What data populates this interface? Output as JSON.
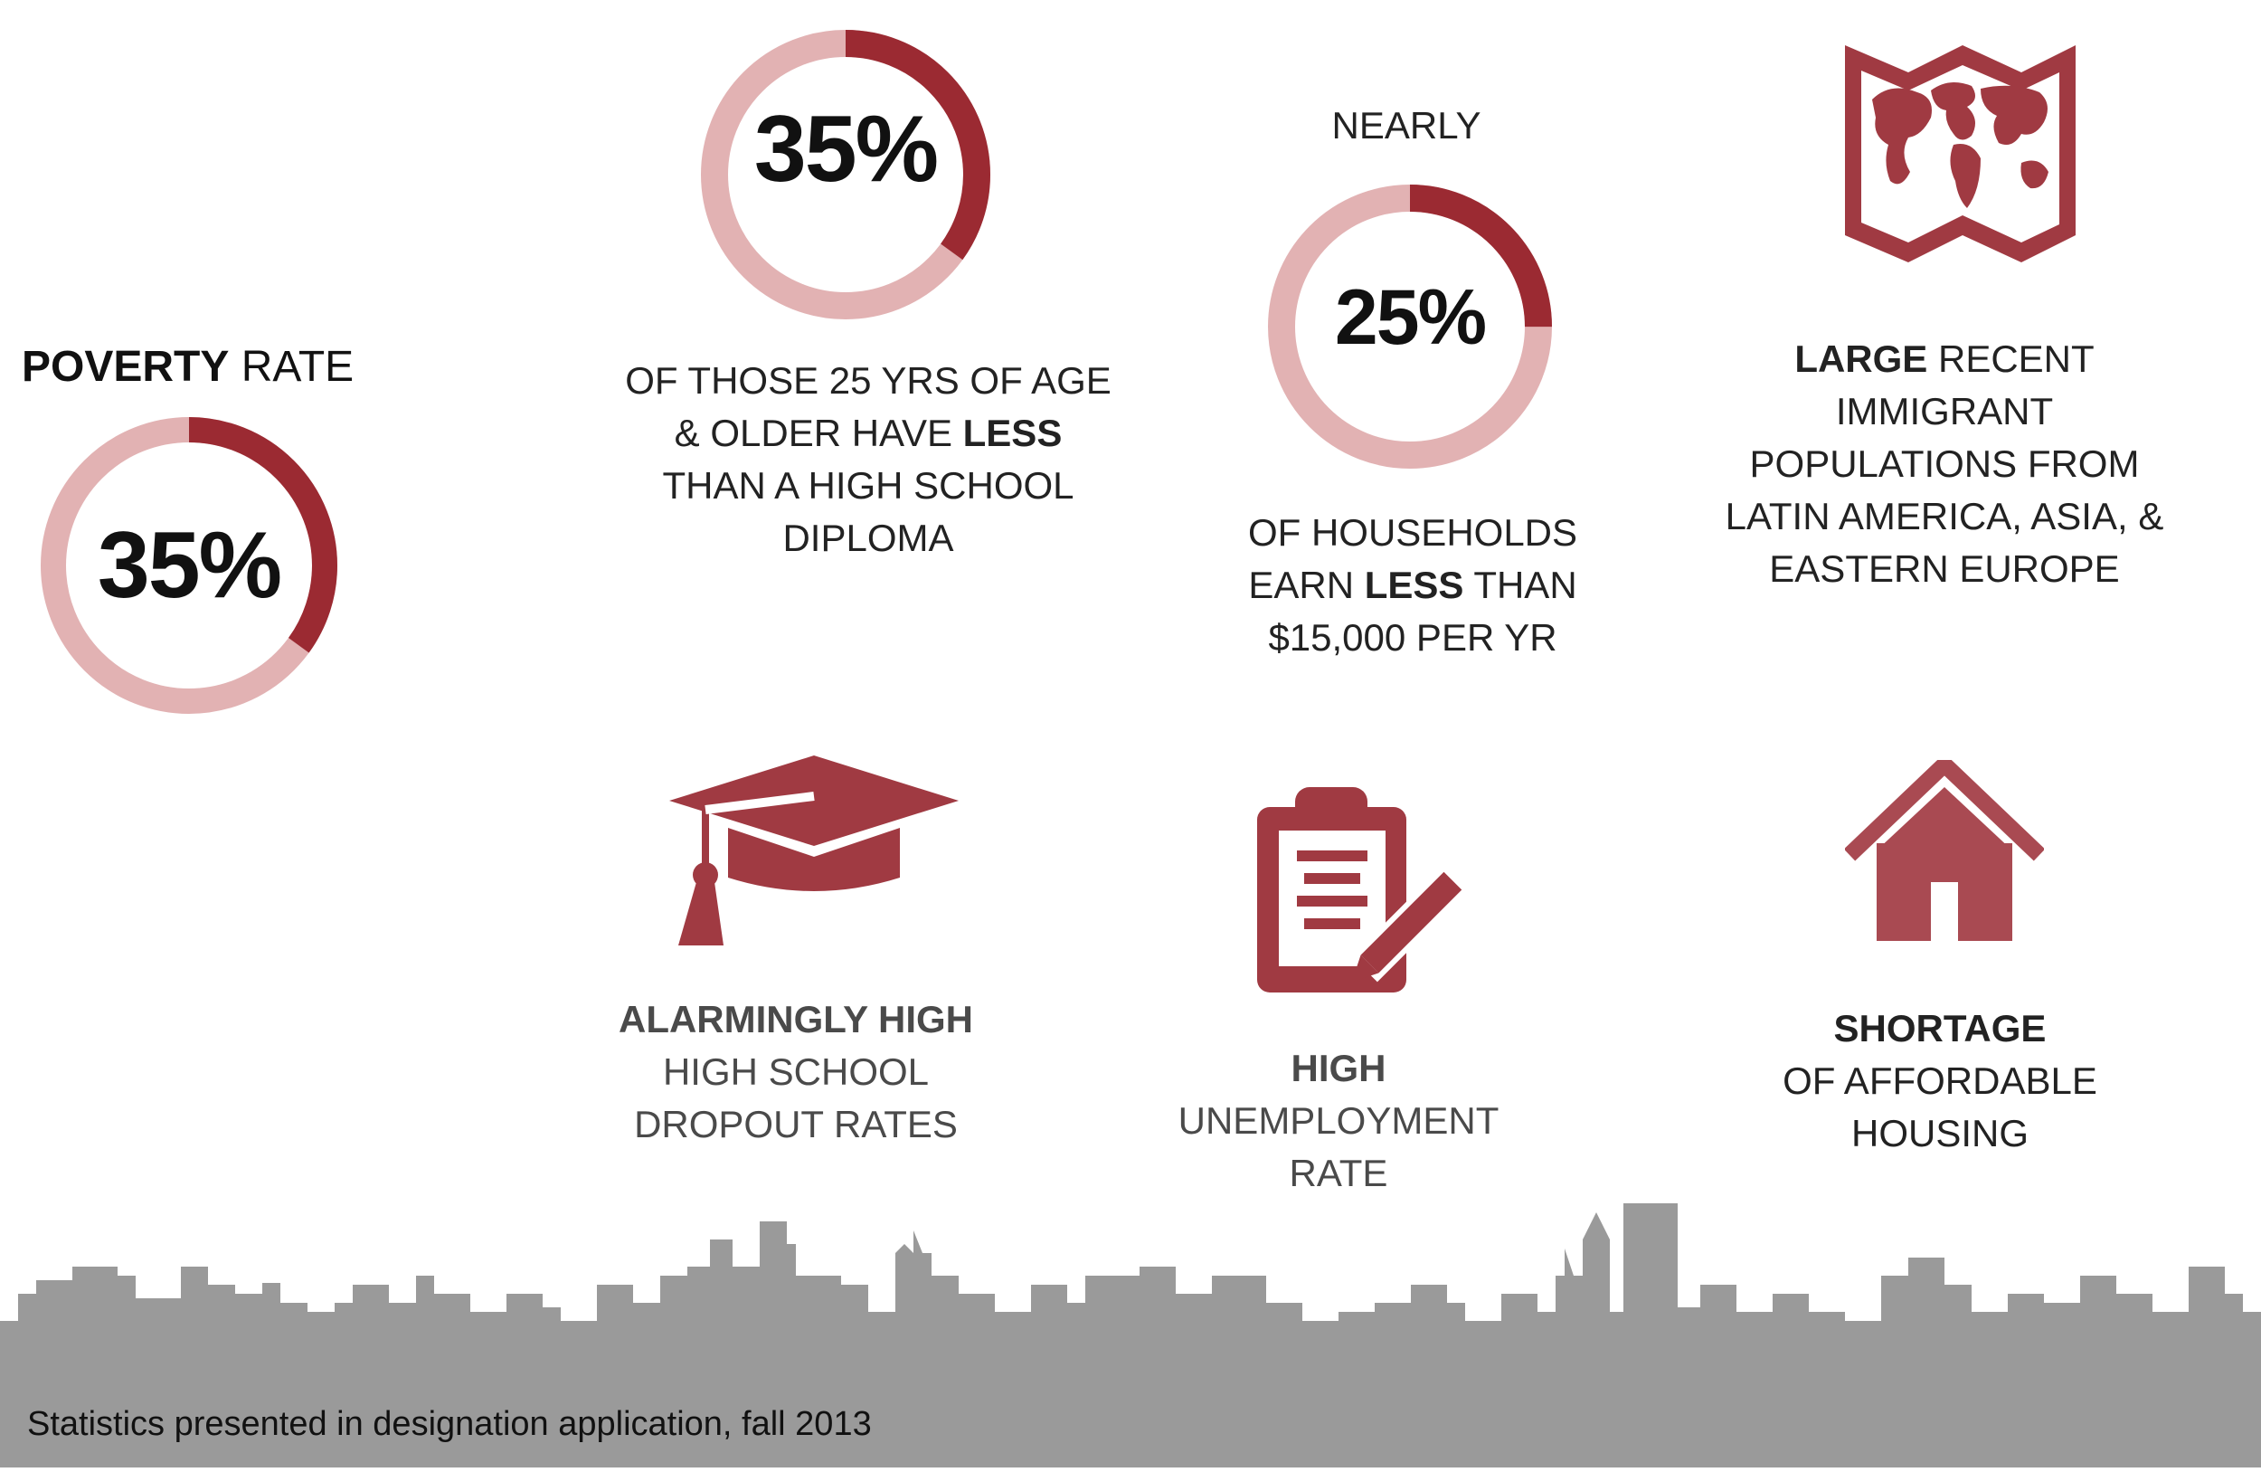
{
  "colors": {
    "accent_dark": "#9b2a32",
    "accent_light": "#e2b2b3",
    "icon_red": "#a03a42",
    "skyline_gray": "#9a9a9a"
  },
  "poverty": {
    "heading_bold": "POVERTY",
    "heading_rest": "RATE",
    "percent_label": "35%",
    "fraction": 0.35
  },
  "education": {
    "percent_label": "35%",
    "fraction": 0.35,
    "line1": "OF THOSE 25 YRS OF AGE",
    "line2_pre": "& OLDER HAVE ",
    "line2_bold": "LESS",
    "line3": "THAN A HIGH SCHOOL",
    "line4": "DIPLOMA"
  },
  "income": {
    "prefix": "NEARLY",
    "percent_label": "25%",
    "fraction": 0.25,
    "line1": "OF HOUSEHOLDS",
    "line2_pre": "EARN ",
    "line2_bold": "LESS",
    "line2_post": " THAN",
    "line3": "$15,000 PER YR"
  },
  "immigrant": {
    "icon": "world-map-icon",
    "line1_bold": "LARGE",
    "line1_rest": " RECENT",
    "line2": "IMMIGRANT",
    "line3": "POPULATIONS FROM",
    "line4": "LATIN AMERICA, ASIA, &",
    "line5": "EASTERN EUROPE"
  },
  "dropout": {
    "icon": "graduation-cap-icon",
    "line1_bold": "ALARMINGLY HIGH",
    "line2": "HIGH SCHOOL",
    "line3": "DROPOUT RATES"
  },
  "unemployment": {
    "icon": "clipboard-pencil-icon",
    "line1_bold": "HIGH",
    "line2": "UNEMPLOYMENT",
    "line3": "RATE"
  },
  "housing": {
    "icon": "house-icon",
    "line1_bold": "SHORTAGE",
    "line2": "OF AFFORDABLE",
    "line3": "HOUSING"
  },
  "footnote": "Statistics presented in designation application, fall 2013"
}
